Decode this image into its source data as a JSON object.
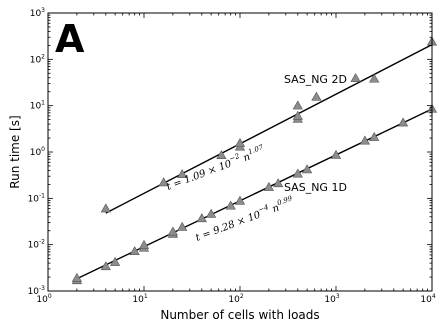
{
  "chart_data": {
    "type": "scatter",
    "panel_letter": "A",
    "xlabel": "Number of cells with loads",
    "ylabel": "Run time [s]",
    "xscale": "log",
    "yscale": "log",
    "xlim": [
      1,
      10000
    ],
    "ylim": [
      0.001,
      1000
    ],
    "x_ticks": [
      {
        "value": 1,
        "base": "10",
        "exp": "0"
      },
      {
        "value": 10,
        "base": "10",
        "exp": "1"
      },
      {
        "value": 100,
        "base": "10",
        "exp": "2"
      },
      {
        "value": 1000,
        "base": "10",
        "exp": "3"
      },
      {
        "value": 10000,
        "base": "10",
        "exp": "4"
      }
    ],
    "y_ticks": [
      {
        "value": 0.001,
        "base": "10",
        "exp": "-3"
      },
      {
        "value": 0.01,
        "base": "10",
        "exp": "-2"
      },
      {
        "value": 0.1,
        "base": "10",
        "exp": "-1"
      },
      {
        "value": 1,
        "base": "10",
        "exp": "0"
      },
      {
        "value": 10,
        "base": "10",
        "exp": "1"
      },
      {
        "value": 100,
        "base": "10",
        "exp": "2"
      },
      {
        "value": 1000,
        "base": "10",
        "exp": "3"
      }
    ],
    "grid": false,
    "series": [
      {
        "name": "SAS_NG 2D",
        "marker": "triangle",
        "color": "#8c8c8c",
        "points": [
          {
            "x": 4,
            "y": 0.06
          },
          {
            "x": 16,
            "y": 0.22
          },
          {
            "x": 25,
            "y": 0.33
          },
          {
            "x": 64,
            "y": 0.85
          },
          {
            "x": 100,
            "y": 1.3
          },
          {
            "x": 100,
            "y": 1.55
          },
          {
            "x": 400,
            "y": 5.2
          },
          {
            "x": 400,
            "y": 6.0
          },
          {
            "x": 400,
            "y": 10.0
          },
          {
            "x": 625,
            "y": 15.5
          },
          {
            "x": 1600,
            "y": 39
          },
          {
            "x": 2500,
            "y": 38
          },
          {
            "x": 10000,
            "y": 240
          }
        ]
      },
      {
        "name": "SAS_NG 1D",
        "marker": "triangle",
        "color": "#8c8c8c",
        "points": [
          {
            "x": 2,
            "y": 0.0017
          },
          {
            "x": 2,
            "y": 0.0019
          },
          {
            "x": 4,
            "y": 0.0034
          },
          {
            "x": 5,
            "y": 0.0042
          },
          {
            "x": 8,
            "y": 0.0072
          },
          {
            "x": 10,
            "y": 0.0085
          },
          {
            "x": 10,
            "y": 0.0098
          },
          {
            "x": 20,
            "y": 0.017
          },
          {
            "x": 20,
            "y": 0.019
          },
          {
            "x": 25,
            "y": 0.024
          },
          {
            "x": 40,
            "y": 0.037
          },
          {
            "x": 50,
            "y": 0.046
          },
          {
            "x": 80,
            "y": 0.069
          },
          {
            "x": 100,
            "y": 0.088
          },
          {
            "x": 200,
            "y": 0.175
          },
          {
            "x": 250,
            "y": 0.21
          },
          {
            "x": 400,
            "y": 0.34
          },
          {
            "x": 500,
            "y": 0.42
          },
          {
            "x": 1000,
            "y": 0.86
          },
          {
            "x": 2000,
            "y": 1.75
          },
          {
            "x": 2500,
            "y": 2.1
          },
          {
            "x": 5000,
            "y": 4.3
          },
          {
            "x": 10000,
            "y": 8.5
          }
        ]
      }
    ],
    "fits": [
      {
        "series": "SAS_NG 2D",
        "coef": 0.0109,
        "power": 1.07,
        "x_range": [
          4,
          10000
        ],
        "label": {
          "lhs": "t = 1.09 × 10",
          "exp10": "−2",
          "mid": " n",
          "exp_n": "1.07"
        }
      },
      {
        "series": "SAS_NG 1D",
        "coef": 0.000928,
        "power": 0.99,
        "x_range": [
          2,
          10000
        ],
        "label": {
          "lhs": "t = 9.28 × 10",
          "exp10": "−4",
          "mid": " n",
          "exp_n": "0.99"
        }
      }
    ]
  }
}
